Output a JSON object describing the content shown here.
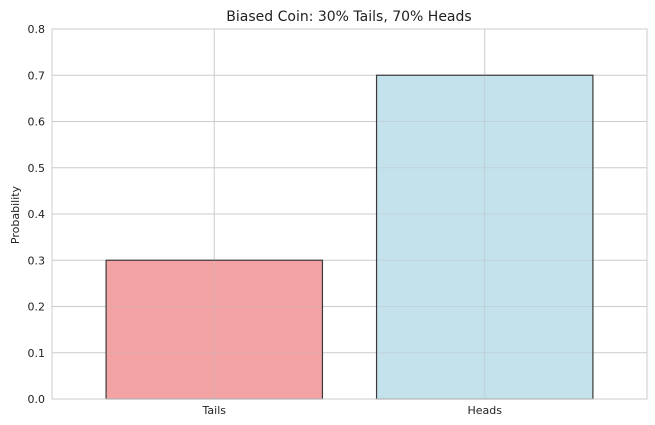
{
  "chart_data": {
    "type": "bar",
    "title": "Biased Coin: 30% Tails, 70% Heads",
    "xlabel": "",
    "ylabel": "Probability",
    "categories": [
      "Tails",
      "Heads"
    ],
    "values": [
      0.3,
      0.7
    ],
    "colors": [
      "#f4a3a5",
      "#c4e2ec"
    ],
    "edge_color": "#3a3a3a",
    "ylim": [
      0,
      0.8
    ],
    "yticks": [
      0.0,
      0.1,
      0.2,
      0.3,
      0.4,
      0.5,
      0.6,
      0.7,
      0.8
    ],
    "ytick_labels": [
      "0.0",
      "0.1",
      "0.2",
      "0.3",
      "0.4",
      "0.5",
      "0.6",
      "0.7",
      "0.8"
    ],
    "grid": true,
    "grid_color": "#cccccc"
  }
}
